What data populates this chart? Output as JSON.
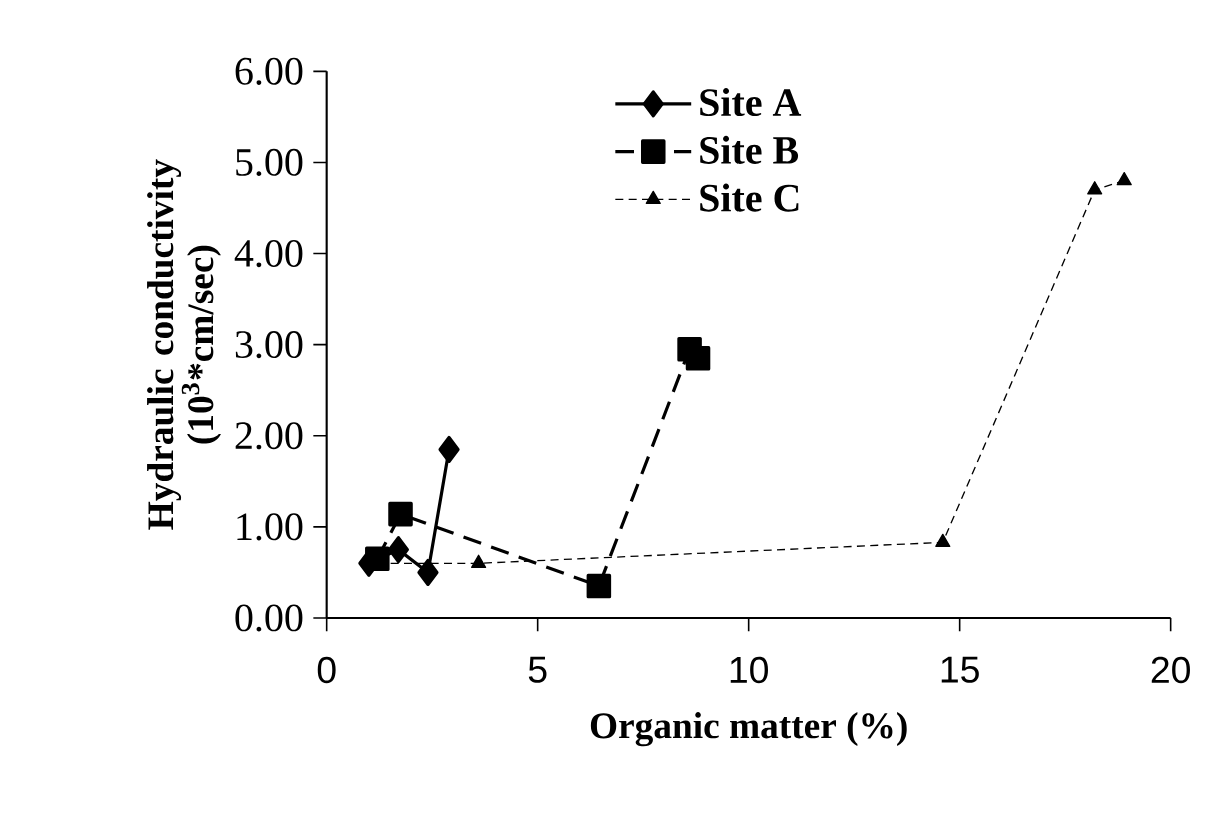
{
  "chart_data": {
    "type": "line",
    "xlabel": "Organic matter (%)",
    "ylabel": "Hydraulic conductivity (10$^{3}$*cm/sec)",
    "xlim": [
      0,
      20
    ],
    "xticks": [
      0,
      5,
      10,
      15,
      20
    ],
    "ylim": [
      0,
      6
    ],
    "yticks": [
      {
        "value": 0,
        "label": "0.00"
      },
      {
        "value": 1,
        "label": "1.00"
      },
      {
        "value": 2,
        "label": "2.00"
      },
      {
        "value": 3,
        "label": "3.00"
      },
      {
        "value": 4,
        "label": "4.00"
      },
      {
        "value": 5,
        "label": "5.00"
      },
      {
        "value": 6,
        "label": "6.00"
      }
    ],
    "legend": "top",
    "grid": false,
    "series": [
      {
        "name": "Site A",
        "color": "#000000",
        "marker": "diamond",
        "line_style": "solid",
        "x": [
          1.0,
          1.7,
          2.4,
          2.9
        ],
        "values": [
          0.6,
          0.75,
          0.5,
          1.85
        ]
      },
      {
        "name": "Site B",
        "color": "#000000",
        "marker": "square",
        "line_style": "dashed",
        "x": [
          1.2,
          1.75,
          6.45,
          8.6,
          8.8
        ],
        "values": [
          0.65,
          1.14,
          0.35,
          2.95,
          2.85
        ]
      },
      {
        "name": "Site C",
        "color": "#000000",
        "marker": "triangle",
        "line_style": "dotted",
        "x": [
          1.2,
          3.6,
          14.6,
          18.2,
          18.9
        ],
        "values": [
          0.6,
          0.6,
          0.83,
          4.7,
          4.8
        ]
      }
    ]
  }
}
